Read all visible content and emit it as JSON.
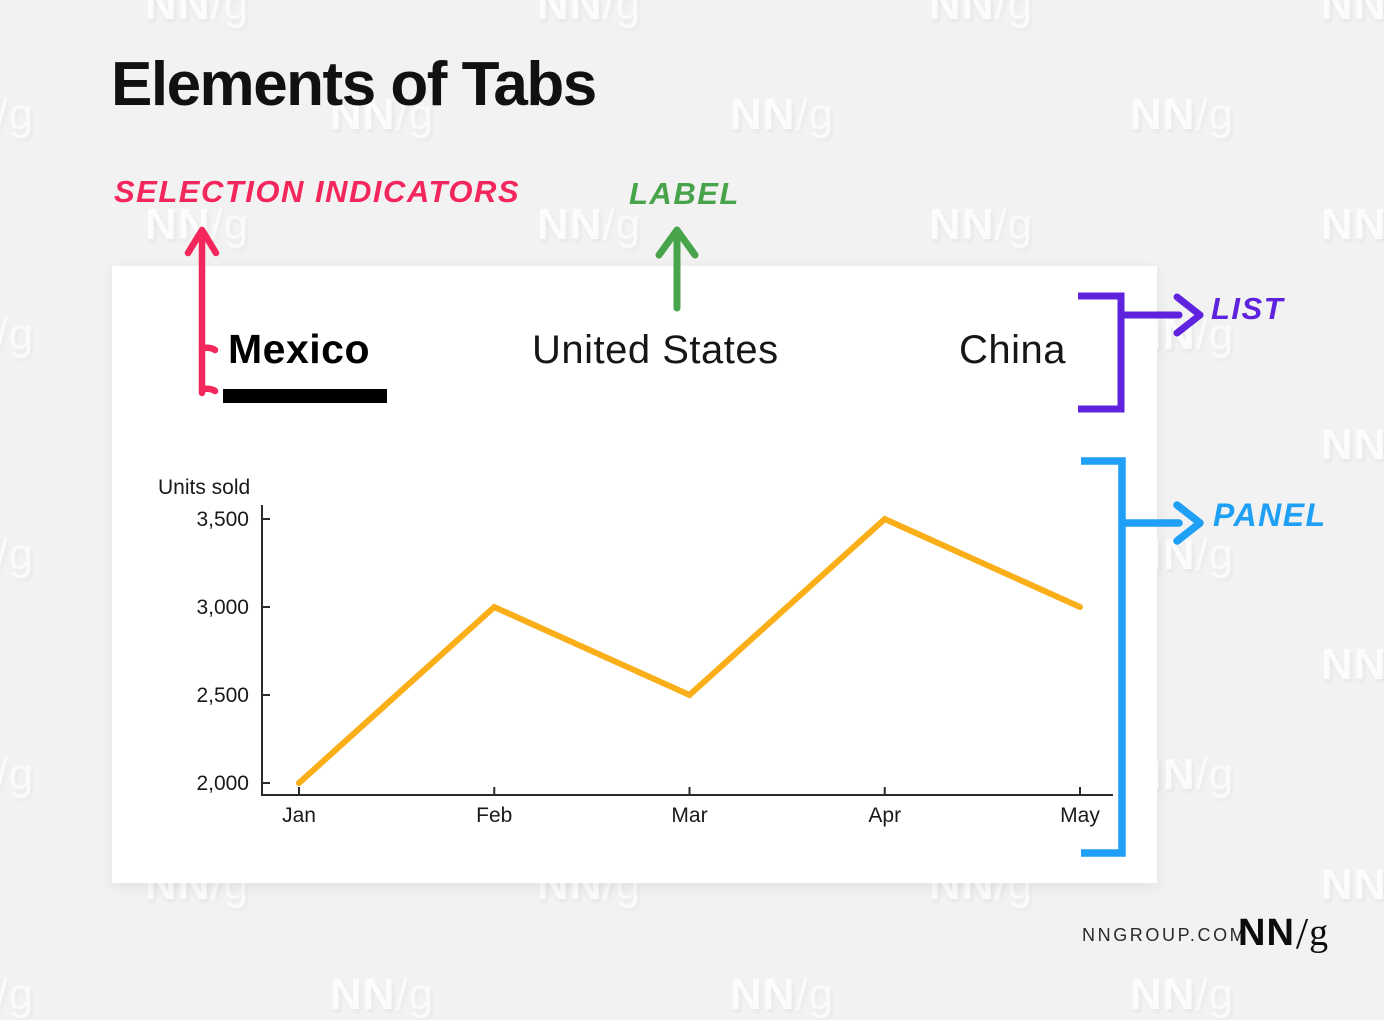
{
  "title": "Elements of Tabs",
  "annotations": {
    "selection_indicators": "SELECTION INDICATORS",
    "label": "LABEL",
    "list": "LIST",
    "panel": "PANEL"
  },
  "tabs": {
    "items": [
      {
        "label": "Mexico",
        "selected": true
      },
      {
        "label": "United States",
        "selected": false
      },
      {
        "label": "China",
        "selected": false
      }
    ]
  },
  "chart_data": {
    "type": "line",
    "title": "",
    "ylabel": "Units sold",
    "xlabel": "",
    "categories": [
      "Jan",
      "Feb",
      "Mar",
      "Apr",
      "May"
    ],
    "series": [
      {
        "name": "Units sold",
        "values": [
          2000,
          3000,
          2500,
          3500,
          3000
        ]
      }
    ],
    "ylim": [
      2000,
      3500
    ],
    "ytick_values": [
      2000,
      2500,
      3000,
      3500
    ],
    "ytick_labels": [
      "2,000",
      "2,500",
      "3,000",
      "3,500"
    ],
    "grid": false,
    "legend": false,
    "line_color": "#FAAF19"
  },
  "footer": {
    "site": "NNGROUP.COM",
    "logo_nn": "NN",
    "logo_slash": "/",
    "logo_g": "g"
  },
  "watermark": {
    "text": "NN/g"
  },
  "colors": {
    "pink": "#F4275C",
    "green": "#48A44B",
    "purple": "#5F23E0",
    "blue": "#1FA0F6",
    "orange": "#FAAF19",
    "ink": "#111111",
    "axis": "#2B2B2B",
    "card_bg": "#FFFFFF",
    "page_bg": "#F2F2F2",
    "selected_underline": "#000000"
  }
}
